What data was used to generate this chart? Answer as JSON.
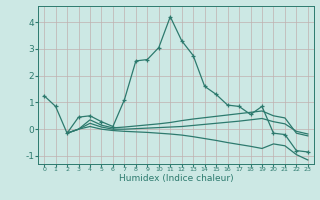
{
  "xlabel": "Humidex (Indice chaleur)",
  "line_color": "#2d7a6e",
  "bg_color": "#cce8e4",
  "grid_color": "#c0b0b0",
  "xlim": [
    -0.5,
    23.5
  ],
  "ylim": [
    -1.3,
    4.6
  ],
  "xticks": [
    0,
    1,
    2,
    3,
    4,
    5,
    6,
    7,
    8,
    9,
    10,
    11,
    12,
    13,
    14,
    15,
    16,
    17,
    18,
    19,
    20,
    21,
    22,
    23
  ],
  "yticks": [
    -1,
    0,
    1,
    2,
    3,
    4
  ],
  "line1_x": [
    0,
    1,
    2,
    3,
    4,
    5,
    6,
    7,
    8,
    9,
    10,
    11,
    12,
    13,
    14,
    15,
    16,
    17,
    18,
    19,
    20,
    21,
    22,
    23
  ],
  "line1_y": [
    1.25,
    0.85,
    -0.15,
    0.45,
    0.5,
    0.28,
    0.1,
    1.1,
    2.55,
    2.6,
    3.05,
    4.2,
    3.3,
    2.75,
    1.6,
    1.3,
    0.9,
    0.85,
    0.55,
    0.85,
    -0.15,
    -0.2,
    -0.8,
    -0.85
  ],
  "line2_x": [
    2,
    3,
    4,
    5,
    6,
    7,
    8,
    9,
    10,
    11,
    12,
    13,
    14,
    15,
    16,
    17,
    18,
    19,
    20,
    21,
    22,
    23
  ],
  "line2_y": [
    -0.15,
    0.0,
    0.35,
    0.15,
    0.05,
    0.08,
    0.12,
    0.16,
    0.2,
    0.25,
    0.32,
    0.38,
    0.43,
    0.48,
    0.53,
    0.58,
    0.63,
    0.68,
    0.5,
    0.42,
    -0.15,
    -0.25
  ],
  "line3_x": [
    2,
    3,
    4,
    5,
    6,
    7,
    8,
    9,
    10,
    11,
    12,
    13,
    14,
    15,
    16,
    17,
    18,
    19,
    20,
    21,
    22,
    23
  ],
  "line3_y": [
    -0.15,
    0.0,
    0.1,
    0.0,
    -0.05,
    -0.08,
    -0.1,
    -0.12,
    -0.15,
    -0.18,
    -0.22,
    -0.28,
    -0.35,
    -0.42,
    -0.5,
    -0.57,
    -0.64,
    -0.72,
    -0.55,
    -0.62,
    -0.95,
    -1.15
  ],
  "line4_x": [
    2,
    3,
    4,
    5,
    6,
    7,
    8,
    9,
    10,
    11,
    12,
    13,
    14,
    15,
    16,
    17,
    18,
    19,
    20,
    21,
    22,
    23
  ],
  "line4_y": [
    -0.15,
    0.0,
    0.22,
    0.08,
    0.0,
    0.0,
    0.02,
    0.04,
    0.06,
    0.08,
    0.1,
    0.14,
    0.18,
    0.22,
    0.26,
    0.3,
    0.35,
    0.4,
    0.28,
    0.2,
    -0.08,
    -0.18
  ]
}
